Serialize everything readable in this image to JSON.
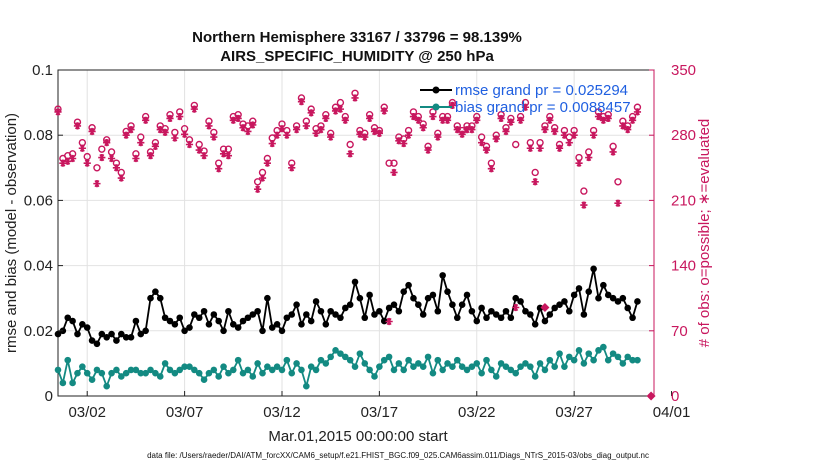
{
  "chart_data": {
    "type": "line",
    "title": "Northern Hemisphere 33167 / 33796 = 98.139%",
    "subtitle": "AIRS_SPECIFIC_HUMIDITY @ 250 hPa",
    "xlabel": "Mar.01,2015 00:00:00 start",
    "ylabel": "rmse and bias (model - observation)",
    "ylabel_right": "# of obs: o=possible; ∗=evaluated",
    "ylim": [
      0,
      0.1
    ],
    "ylim_right": [
      0,
      350
    ],
    "xlim": [
      0.5,
      31.1
    ],
    "x_ticks": [
      {
        "value": 2,
        "label": "03/02"
      },
      {
        "value": 7,
        "label": "03/07"
      },
      {
        "value": 12,
        "label": "03/12"
      },
      {
        "value": 17,
        "label": "03/17"
      },
      {
        "value": 22,
        "label": "03/22"
      },
      {
        "value": 27,
        "label": "03/27"
      },
      {
        "value": 32,
        "label": "04/01"
      }
    ],
    "y_ticks": [
      "0",
      "0.02",
      "0.04",
      "0.06",
      "0.08",
      "0.1"
    ],
    "y_tick_values": [
      0,
      0.02,
      0.04,
      0.06,
      0.08,
      0.1
    ],
    "y_ticks_right": [
      "0",
      "70",
      "140",
      "210",
      "280",
      "350"
    ],
    "y_tick_values_right": [
      0,
      70,
      140,
      210,
      280,
      350
    ],
    "grid": true,
    "legend_position": "top-right",
    "legend": [
      "rmse grand pr = 0.025294",
      "bias grand pr = 0.0088457"
    ],
    "series": [
      {
        "name": "rmse",
        "color": "#000000",
        "marker": "filled-circle",
        "x_start": 0.5,
        "x_step": 0.25,
        "values": [
          0.019,
          0.02,
          0.024,
          0.023,
          0.019,
          0.022,
          0.021,
          0.017,
          0.016,
          0.019,
          0.018,
          0.019,
          0.017,
          0.019,
          0.018,
          0.018,
          0.023,
          0.019,
          0.02,
          0.03,
          0.032,
          0.03,
          0.024,
          0.023,
          0.022,
          0.024,
          0.02,
          0.021,
          0.025,
          0.024,
          0.026,
          0.022,
          0.025,
          0.023,
          0.02,
          0.026,
          0.022,
          0.021,
          0.023,
          0.024,
          0.025,
          0.026,
          0.02,
          0.03,
          0.021,
          0.022,
          0.02,
          0.024,
          0.025,
          0.028,
          0.022,
          0.025,
          0.023,
          0.029,
          0.026,
          0.022,
          0.026,
          0.025,
          0.024,
          0.027,
          0.028,
          0.035,
          0.03,
          0.024,
          0.031,
          0.025,
          0.026,
          0.023,
          0.027,
          0.028,
          0.026,
          0.032,
          0.034,
          0.03,
          0.028,
          0.025,
          0.03,
          0.031,
          0.026,
          0.037,
          0.032,
          0.028,
          0.024,
          0.028,
          0.031,
          0.026,
          0.023,
          0.027,
          0.024,
          0.026,
          0.025,
          0.024,
          0.026,
          0.024,
          0.03,
          0.029,
          0.026,
          0.025,
          0.022,
          0.027,
          0.023,
          0.025,
          0.027,
          0.028,
          0.029,
          0.026,
          0.031,
          0.033,
          0.025,
          0.032,
          0.039,
          0.03,
          0.034,
          0.031,
          0.03,
          0.029,
          0.03,
          0.027,
          0.024,
          0.029
        ]
      },
      {
        "name": "bias",
        "color": "#138a82",
        "marker": "filled-circle",
        "x_start": 0.5,
        "x_step": 0.25,
        "values": [
          0.008,
          0.004,
          0.011,
          0.004,
          0.007,
          0.009,
          0.007,
          0.005,
          0.008,
          0.007,
          0.003,
          0.007,
          0.008,
          0.006,
          0.007,
          0.008,
          0.008,
          0.007,
          0.007,
          0.008,
          0.007,
          0.006,
          0.01,
          0.008,
          0.007,
          0.008,
          0.009,
          0.009,
          0.008,
          0.007,
          0.005,
          0.007,
          0.008,
          0.006,
          0.009,
          0.007,
          0.008,
          0.011,
          0.007,
          0.008,
          0.006,
          0.01,
          0.007,
          0.009,
          0.008,
          0.009,
          0.008,
          0.011,
          0.007,
          0.01,
          0.008,
          0.003,
          0.009,
          0.008,
          0.011,
          0.01,
          0.012,
          0.014,
          0.013,
          0.012,
          0.011,
          0.009,
          0.013,
          0.01,
          0.008,
          0.006,
          0.009,
          0.011,
          0.012,
          0.008,
          0.01,
          0.008,
          0.011,
          0.009,
          0.01,
          0.009,
          0.012,
          0.007,
          0.011,
          0.008,
          0.01,
          0.009,
          0.011,
          0.009,
          0.008,
          0.009,
          0.01,
          0.007,
          0.011,
          0.008,
          0.006,
          0.01,
          0.009,
          0.008,
          0.007,
          0.009,
          0.01,
          0.009,
          0.006,
          0.01,
          0.008,
          0.011,
          0.009,
          0.013,
          0.009,
          0.012,
          0.011,
          0.014,
          0.01,
          0.013,
          0.011,
          0.014,
          0.015,
          0.011,
          0.013,
          0.012,
          0.01,
          0.012,
          0.011,
          0.011
        ]
      },
      {
        "name": "obs possible",
        "color": "#c8175e",
        "marker": "open-circle",
        "axis": "right",
        "x_start": 0.5,
        "x_step": 0.25,
        "values": [
          308,
          255,
          258,
          260,
          294,
          272,
          257,
          288,
          245,
          265,
          275,
          262,
          250,
          240,
          284,
          290,
          260,
          278,
          300,
          262,
          272,
          290,
          287,
          302,
          283,
          305,
          287,
          275,
          312,
          270,
          263,
          295,
          283,
          250,
          265,
          265,
          300,
          302,
          292,
          290,
          295,
          230,
          240,
          255,
          277,
          285,
          292,
          285,
          250,
          290,
          320,
          295,
          308,
          287,
          290,
          302,
          282,
          310,
          315,
          300,
          270,
          325,
          285,
          282,
          302,
          288,
          285,
          310,
          250,
          250,
          278,
          276,
          285,
          305,
          300,
          292,
          268,
          305,
          282,
          300,
          300,
          315,
          290,
          285,
          290,
          290,
          300,
          278,
          268,
          250,
          280,
          302,
          288,
          298,
          270,
          300,
          315,
          272,
          240,
          272,
          290,
          300,
          288,
          270,
          285,
          278,
          285,
          256,
          220,
          262,
          285,
          305,
          300,
          302,
          268,
          230,
          295,
          290,
          300,
          310
        ]
      },
      {
        "name": "obs evaluated",
        "color": "#c8175e",
        "marker": "asterisk",
        "axis": "right",
        "x_start": 0.5,
        "x_step": 0.25,
        "values": [
          305,
          250,
          252,
          255,
          290,
          266,
          250,
          284,
          228,
          256,
          272,
          255,
          245,
          234,
          280,
          286,
          255,
          272,
          296,
          258,
          268,
          286,
          283,
          298,
          277,
          300,
          281,
          270,
          308,
          264,
          258,
          290,
          278,
          244,
          260,
          258,
          296,
          298,
          288,
          284,
          291,
          222,
          234,
          250,
          271,
          280,
          287,
          280,
          245,
          286,
          316,
          290,
          304,
          282,
          286,
          298,
          278,
          306,
          308,
          296,
          260,
          320,
          281,
          278,
          298,
          284,
          282,
          306,
          80,
          240,
          274,
          271,
          280,
          300,
          296,
          288,
          264,
          300,
          278,
          296,
          296,
          312,
          286,
          281,
          286,
          286,
          296,
          272,
          264,
          244,
          276,
          298,
          284,
          294,
          95,
          296,
          310,
          266,
          230,
          266,
          286,
          296,
          284,
          266,
          280,
          272,
          280,
          250,
          205,
          256,
          280,
          300,
          296,
          298,
          262,
          207,
          290,
          286,
          296,
          305
        ]
      },
      {
        "name": "obs outliers",
        "color": "#c8175e",
        "marker": "diamond",
        "axis": "right",
        "points": [
          [
            25.5,
            95
          ],
          [
            30.95,
            0
          ]
        ]
      }
    ]
  },
  "footer": "data file: /Users/raeder/DAI/ATM_forcXX/CAM6_setup/f.e21.FHIST_BGC.f09_025.CAM6assim.011/Diags_NTrS_2015-03/obs_diag_output.nc"
}
